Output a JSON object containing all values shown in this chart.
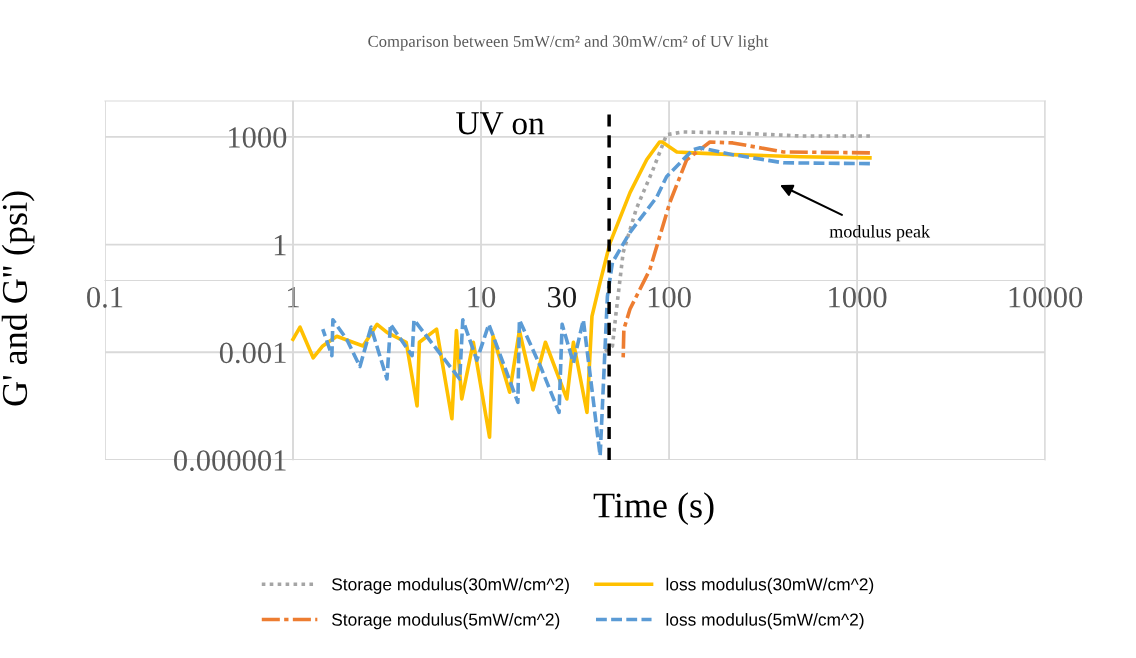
{
  "chart_data": {
    "type": "line",
    "title": "Comparison between 5mW/cm² and 30mW/cm² of UV light",
    "xlabel": "Time (s)",
    "ylabel": "G' and G'' (psi)",
    "log": "xy",
    "grid": true,
    "legend": "bottom",
    "marker": "none",
    "xlim": [
      0.1,
      10000
    ],
    "xticks": [
      0.1,
      1,
      10,
      100,
      1000,
      10000
    ],
    "ylim": [
      1e-06,
      10000
    ],
    "yticks": [
      {
        "value": 1e-06,
        "label": "0.000001"
      },
      0.001,
      1,
      1000
    ],
    "ref_lines": [
      {
        "axis": "x",
        "value": 48,
        "label": "UV on",
        "color": "#000000",
        "line_style": "dashed"
      }
    ],
    "annotations": [
      "30",
      "modulus peak"
    ],
    "series": [
      {
        "name": "Storage modulus(30mW/cm^2)",
        "color": "#a5a5a5",
        "line_style": "dotted",
        "x": [
          45,
          50,
          52,
          57,
          67,
          82,
          97,
          118,
          218,
          500,
          1170
        ],
        "values": [
          0.001,
          0.0015,
          0.01,
          0.6,
          10,
          120,
          1150,
          1370,
          1300,
          1060,
          1060
        ]
      },
      {
        "name": "loss modulus(30mW/cm^2)",
        "color": "#ffc000",
        "line_style": "solid",
        "x": [
          1,
          1.09,
          1.28,
          1.44,
          1.71,
          2.08,
          2.36,
          2.8,
          3.16,
          4.0,
          4.57,
          4.7,
          5.8,
          7.0,
          7.4,
          7.9,
          9.1,
          11.1,
          11.6,
          14.2,
          16,
          18.9,
          22,
          28.6,
          31,
          36.6,
          38.9,
          43,
          48.5,
          62,
          76,
          89,
          92,
          110,
          134,
          218,
          500,
          1170
        ],
        "values": [
          0.0023,
          0.005,
          0.0007,
          0.0015,
          0.0028,
          0.0019,
          0.0015,
          0.006,
          0.0036,
          0.0019,
          3.2e-05,
          0.0019,
          0.0044,
          1.4e-05,
          0.004,
          5e-05,
          0.0019,
          4.3e-06,
          0.0028,
          7.7e-05,
          0.004,
          9e-05,
          0.0019,
          5e-05,
          0.0019,
          2.1e-05,
          0.01,
          0.09,
          1.1,
          28,
          230,
          720,
          720,
          380,
          360,
          320,
          280,
          260
        ]
      },
      {
        "name": "Storage modulus(5mW/cm^2)",
        "color": "#ed7d31",
        "line_style": "dashdot",
        "x": [
          57,
          57.5,
          62,
          79,
          101,
          124,
          165,
          218,
          405,
          1170
        ],
        "values": [
          0.00063,
          0.0044,
          0.016,
          0.2,
          15,
          230,
          720,
          680,
          380,
          360
        ]
      },
      {
        "name": "loss modulus(5mW/cm^2)",
        "color": "#5b9bd5",
        "line_style": "dashed",
        "x": [
          1.44,
          1.61,
          1.63,
          1.93,
          2.27,
          2.6,
          3.16,
          3.3,
          4.3,
          4.4,
          7.7,
          8,
          9.5,
          11,
          15.7,
          16,
          21,
          26,
          27,
          31,
          35,
          43,
          47,
          50,
          62,
          86,
          97,
          134,
          146,
          218,
          405,
          1170
        ],
        "values": [
          0.0044,
          0.0008,
          0.008,
          0.0023,
          0.0004,
          0.005,
          0.00018,
          0.006,
          0.0008,
          0.008,
          0.00018,
          0.008,
          0.0006,
          0.006,
          4e-05,
          0.008,
          0.00034,
          2.1e-05,
          0.006,
          0.0005,
          0.008,
          1.3e-06,
          0.036,
          0.32,
          2.2,
          21,
          78,
          440,
          500,
          320,
          190,
          180
        ]
      }
    ]
  }
}
